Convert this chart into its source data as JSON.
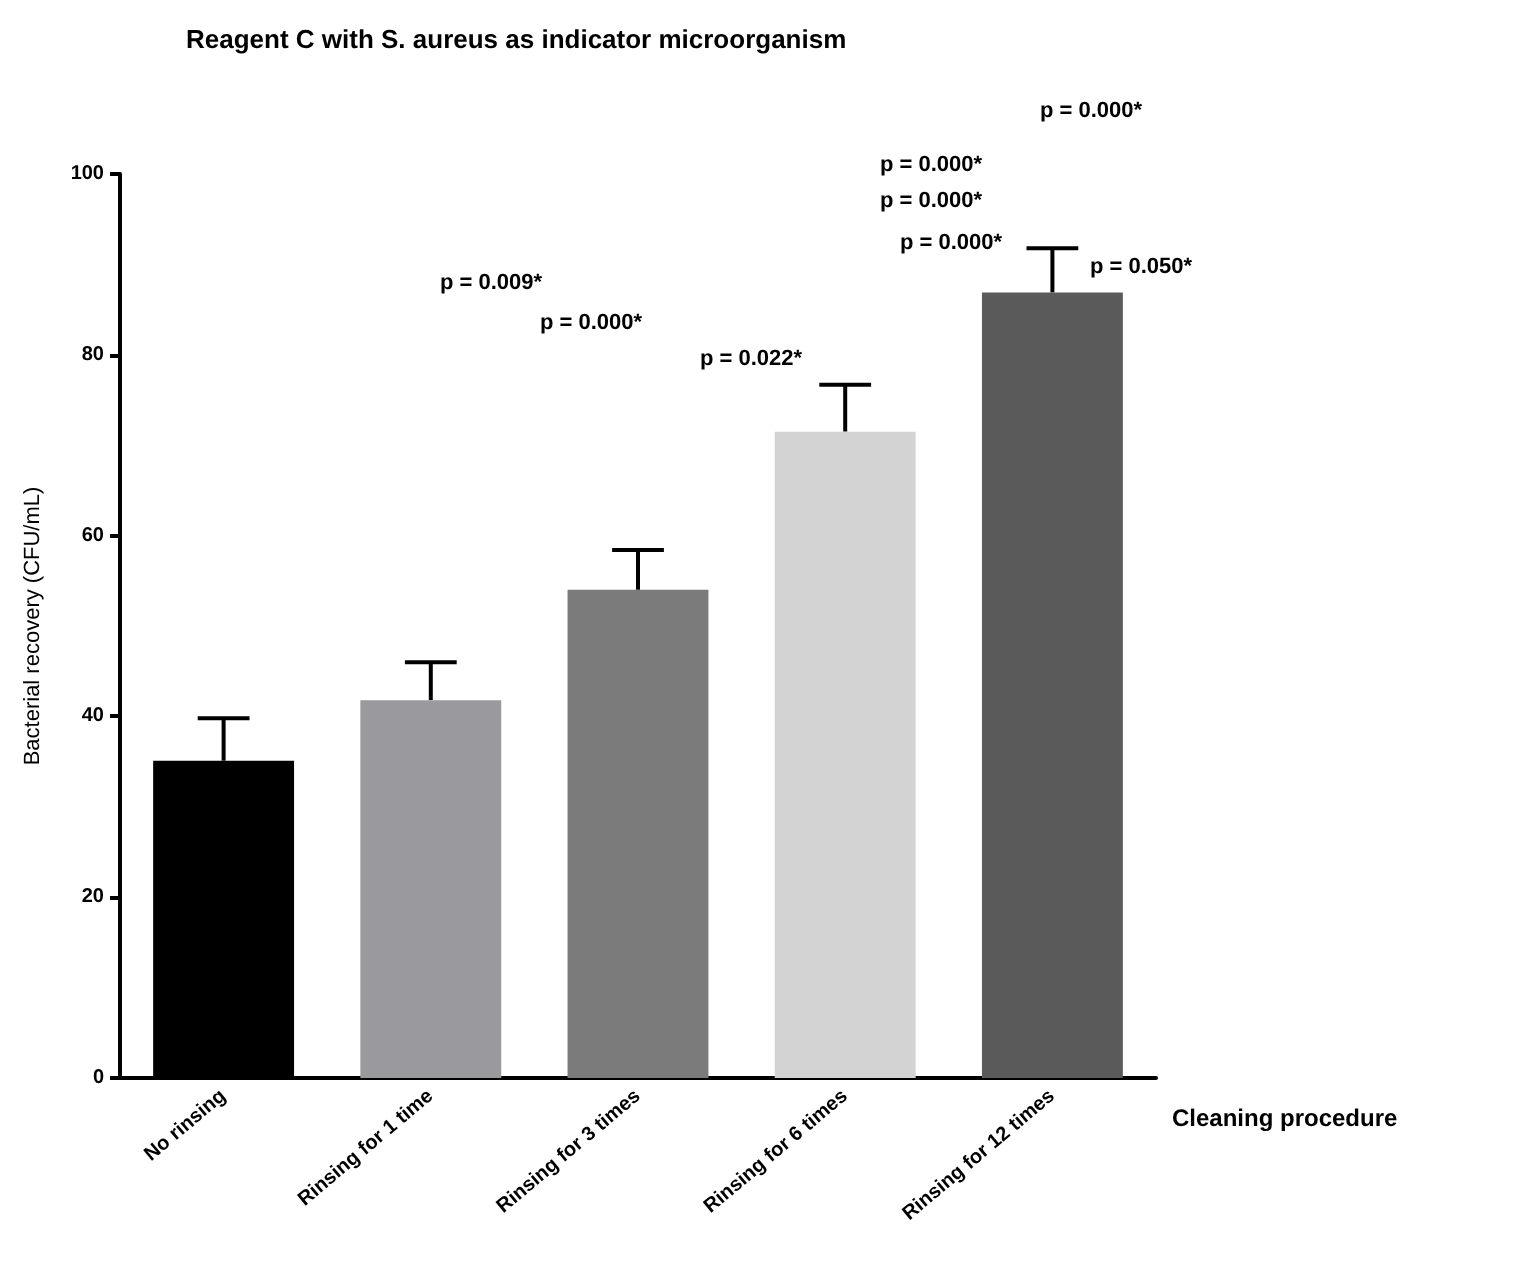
{
  "chart_data": {
    "type": "bar",
    "title": "Reagent C with S. aureus as indicator microorganism",
    "xlabel": "Cleaning procedure",
    "ylabel": "Bacterial recovery (CFU/mL)",
    "categories": [
      "No rinsing",
      "Rinsing for 1 time",
      "Rinsing for 3 times",
      "Rinsing for 6 times",
      "Rinsing for 12 times"
    ],
    "values": [
      35.1,
      41.8,
      54,
      71.5,
      86.9
    ],
    "colors": [
      "#000000",
      "#9a9a9e",
      "#7b7b7b",
      "#d3d3d3",
      "#5a5a5a"
    ],
    "errors": [
      [
        35.1,
        39.8
      ],
      [
        41.8,
        46
      ],
      [
        54,
        58.4
      ],
      [
        71.5,
        76.7
      ],
      [
        86.9,
        91.8
      ]
    ],
    "ylim": [
      0,
      100
    ],
    "yticks": [
      0,
      20,
      40,
      60,
      80,
      100
    ],
    "grid": false,
    "annotations": [
      "p = 0.000*",
      "p = 0.000*",
      "p = 0.000*",
      "p = 0.000*",
      "p = 0.050*",
      "p = 0.009*",
      "p = 0.000*",
      "p = 0.022*"
    ]
  }
}
